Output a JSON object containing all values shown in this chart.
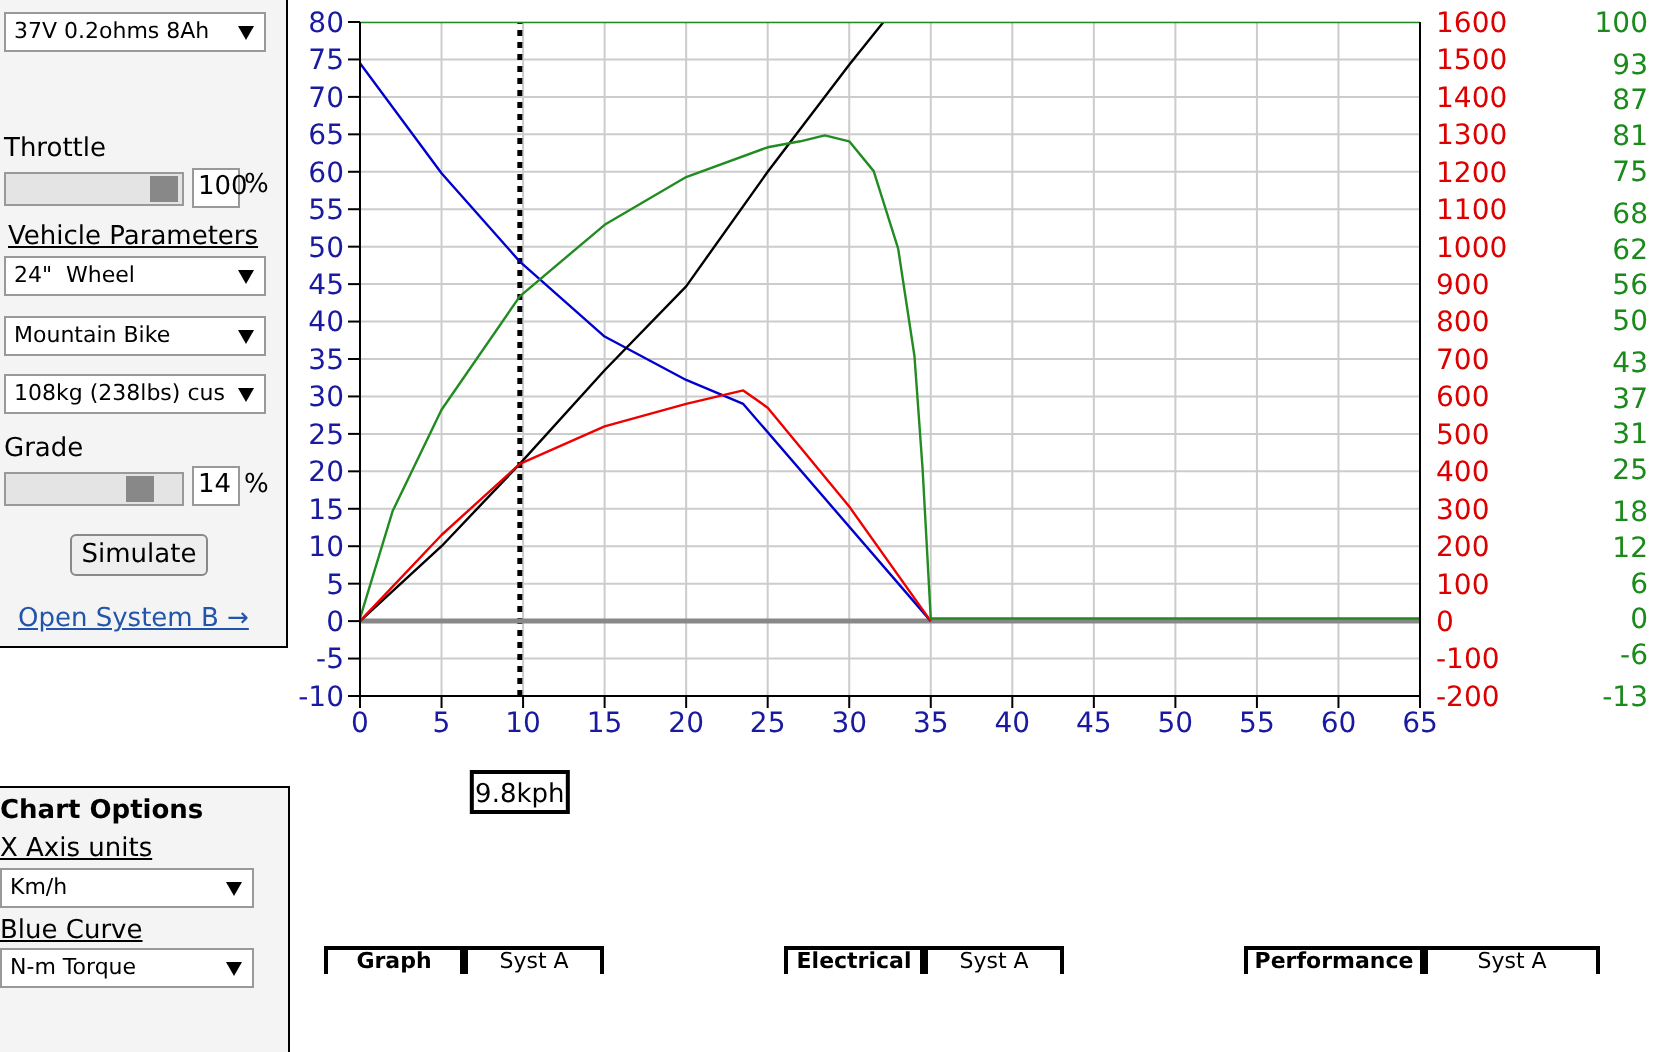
{
  "chart_data": {
    "type": "line",
    "xlim": [
      0,
      65
    ],
    "xticks": [
      0,
      5,
      10,
      15,
      20,
      25,
      30,
      35,
      40,
      45,
      50,
      55,
      60,
      65
    ],
    "ylim": [
      -10,
      80
    ],
    "yticks": [
      -10,
      -5,
      0,
      5,
      10,
      15,
      20,
      25,
      30,
      35,
      40,
      45,
      50,
      55,
      60,
      65,
      70,
      75,
      80
    ],
    "y2lim": [
      -200,
      1600
    ],
    "y2ticks": [
      -200,
      -100,
      0,
      100,
      200,
      300,
      400,
      500,
      600,
      700,
      800,
      900,
      1000,
      1100,
      1200,
      1300,
      1400,
      1500,
      1600
    ],
    "y3lim": [
      -13,
      100
    ],
    "y3ticks": [
      -13,
      -6,
      0,
      6,
      12,
      18,
      25,
      31,
      37,
      43,
      50,
      56,
      62,
      68,
      75,
      81,
      87,
      93,
      100
    ],
    "grid": true,
    "marker": "none",
    "line_style": "solid",
    "series": [
      {
        "color": "#0000cc",
        "x": [
          0,
          5,
          9.8,
          15,
          20,
          23.5,
          35
        ],
        "values": [
          74.5,
          59.8,
          48,
          38,
          32.2,
          29,
          0
        ]
      },
      {
        "color": "#000000",
        "x": [
          0,
          5,
          9.8,
          15,
          20,
          25,
          30,
          32.1
        ],
        "values": [
          0,
          10,
          21,
          33.5,
          44.7,
          60,
          74.3,
          80
        ]
      },
      {
        "color": "#ee0000",
        "axis": "y2",
        "x": [
          0,
          5,
          9.8,
          15,
          20,
          23.5,
          25,
          30,
          35
        ],
        "values": [
          0,
          230,
          420,
          520,
          580,
          616,
          570,
          306,
          0
        ]
      },
      {
        "color": "#228b22",
        "axis": "y3",
        "x": [
          0,
          2,
          5,
          9.8,
          15,
          20,
          25,
          27,
          28.5,
          30,
          31.5,
          33,
          34,
          34.5,
          35,
          65
        ],
        "values": [
          0,
          18,
          35,
          54,
          66,
          74,
          79,
          80,
          81,
          80,
          75,
          62,
          44,
          25,
          0,
          0
        ]
      },
      {
        "color": "#228b22",
        "axis": "y3",
        "x": [
          0,
          65
        ],
        "values": [
          100,
          100
        ]
      }
    ],
    "ref_lines": [
      {
        "axis": "x",
        "value": 9.8,
        "label": "9.8kph",
        "color": "#000000",
        "line_style": "dotted"
      },
      {
        "axis": "y",
        "value": 0,
        "color": "#888888"
      }
    ],
    "annotations": [
      "37V 0.2ohms 8Ah",
      "Throttle",
      "100",
      "%",
      "Vehicle Parameters",
      "24\"  Wheel",
      "Mountain Bike",
      "108kg (238lbs) cus",
      "Grade",
      "14",
      "%",
      "Simulate",
      "Open System B →",
      "Chart Options",
      "X Axis units",
      "Km/h",
      "Blue Curve",
      "N-m Torque",
      "Graph",
      "Syst A",
      "Electrical",
      "Syst A",
      "Performance",
      "Syst A"
    ]
  }
}
